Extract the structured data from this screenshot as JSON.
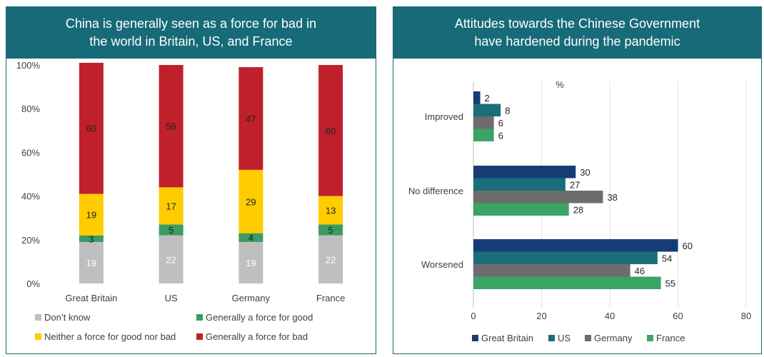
{
  "colors": {
    "banner": "#176a78",
    "dont_know": "#bfbfbf",
    "force_good": "#3a9b63",
    "neither": "#ffcc00",
    "force_bad": "#c0202b",
    "great_britain": "#163d73",
    "us": "#1a6e7c",
    "germany": "#6d6d6d",
    "france": "#3aa366"
  },
  "left_panel": {
    "title": "China is generally seen as a force for bad in\nthe world in Britain, US, and France"
  },
  "right_panel": {
    "title": "Attitudes towards the Chinese Government\nhave hardened during the pandemic"
  },
  "chart_data": [
    {
      "type": "bar",
      "stacked": true,
      "orientation": "vertical",
      "title": "China is generally seen as a force for bad in the world in Britain, US, and France",
      "categories": [
        "Great Britain",
        "US",
        "Germany",
        "France"
      ],
      "series": [
        {
          "name": "Don’t know",
          "values": [
            19,
            22,
            19,
            22
          ],
          "color": "#bfbfbf"
        },
        {
          "name": "Generally a force for good",
          "values": [
            3,
            5,
            4,
            5
          ],
          "color": "#3a9b63"
        },
        {
          "name": "Neither a force for good nor bad",
          "values": [
            19,
            17,
            29,
            13
          ],
          "color": "#ffcc00"
        },
        {
          "name": "Generally a force for bad",
          "values": [
            60,
            56,
            47,
            60
          ],
          "color": "#c0202b"
        }
      ],
      "yticks": [
        "0%",
        "20%",
        "40%",
        "60%",
        "80%",
        "100%"
      ],
      "ylim": [
        0,
        100
      ],
      "grid": false,
      "legend": "bottom"
    },
    {
      "type": "bar",
      "orientation": "horizontal",
      "title": "Attitudes towards the Chinese Government have hardened during the pandemic",
      "unit_label": "%",
      "categories": [
        "Improved",
        "No difference",
        "Worsened"
      ],
      "series": [
        {
          "name": "Great Britain",
          "values": [
            2,
            30,
            60
          ],
          "color": "#163d73"
        },
        {
          "name": "US",
          "values": [
            8,
            27,
            54
          ],
          "color": "#1a6e7c"
        },
        {
          "name": "Germany",
          "values": [
            6,
            38,
            46
          ],
          "color": "#6d6d6d"
        },
        {
          "name": "France",
          "values": [
            6,
            28,
            55
          ],
          "color": "#3aa366"
        }
      ],
      "xticks": [
        "0",
        "20",
        "40",
        "60",
        "80"
      ],
      "xlim": [
        0,
        80
      ],
      "grid": true,
      "legend": "bottom"
    }
  ]
}
